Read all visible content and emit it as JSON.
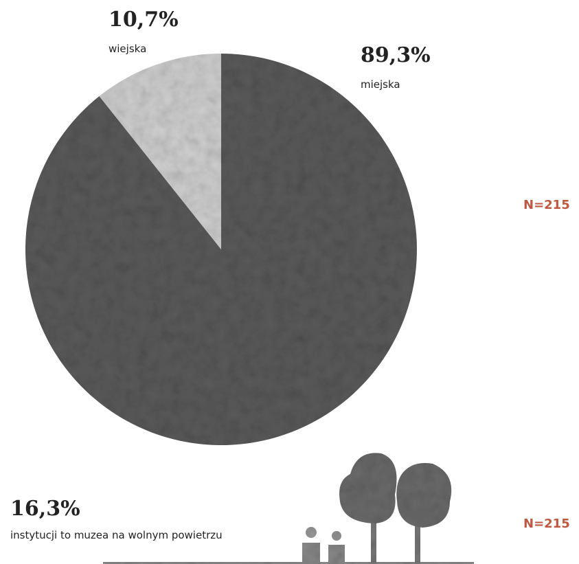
{
  "chart_data": {
    "type": "pie",
    "categories": [
      "miejska",
      "wiejska"
    ],
    "values": [
      89.3,
      10.7
    ],
    "value_labels": [
      "89,3%",
      "10,7%"
    ],
    "colors": [
      "#5a5a5a",
      "#cfcfcf"
    ],
    "annotations": [
      "N=215"
    ]
  },
  "stat": {
    "value_label": "16,3%",
    "text": "instytucji to muzea na wolnym powietrzu",
    "note": "N=215"
  }
}
